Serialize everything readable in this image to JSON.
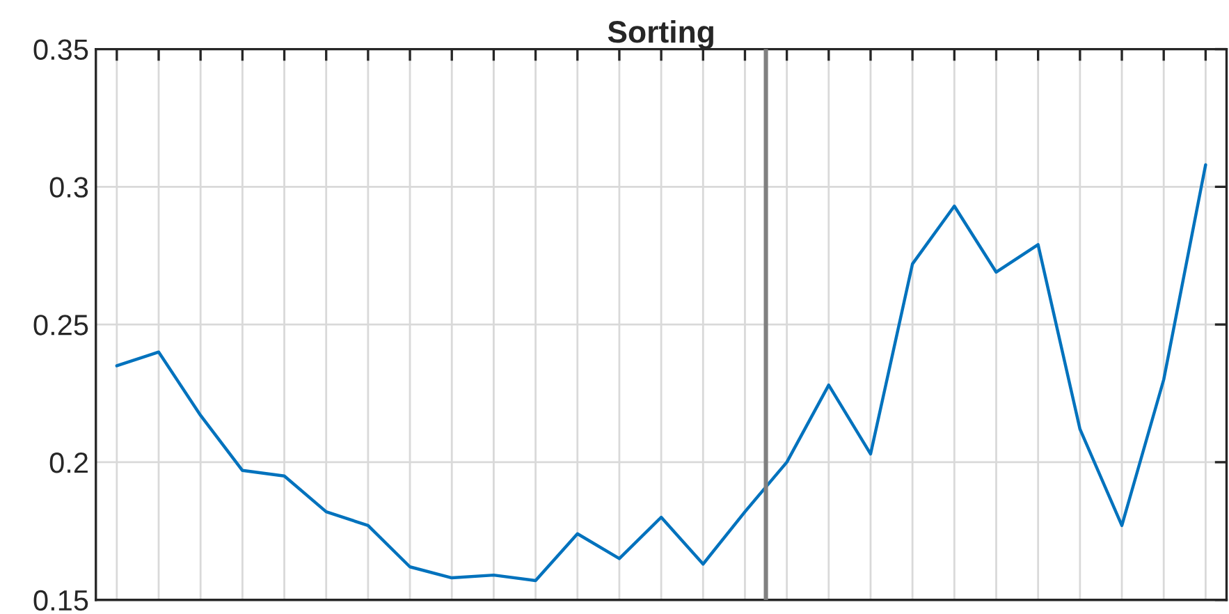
{
  "chart_data": {
    "type": "line",
    "title": "Sorting",
    "categories": [
      null,
      null,
      null,
      null,
      null,
      null,
      null,
      null,
      null,
      null,
      null,
      null,
      null,
      null,
      null,
      null,
      null,
      null,
      null,
      null,
      null,
      null,
      null,
      null,
      null,
      null,
      null
    ],
    "series": [
      {
        "color": "#0072bd",
        "values": [
          0.235,
          0.24,
          0.217,
          0.197,
          0.195,
          0.182,
          0.177,
          0.162,
          0.158,
          0.159,
          0.157,
          0.174,
          0.165,
          0.18,
          0.163,
          0.182,
          0.2,
          0.228,
          0.203,
          0.272,
          0.293,
          0.269,
          0.279,
          0.212,
          0.177,
          0.23,
          0.308
        ]
      }
    ],
    "ylim": [
      0.15,
      0.35
    ],
    "yticks": [
      0.15,
      0.2,
      0.25,
      0.3,
      0.35
    ],
    "tick_labels": "y",
    "grid": true,
    "marker": "none",
    "line_style": "solid"
  }
}
